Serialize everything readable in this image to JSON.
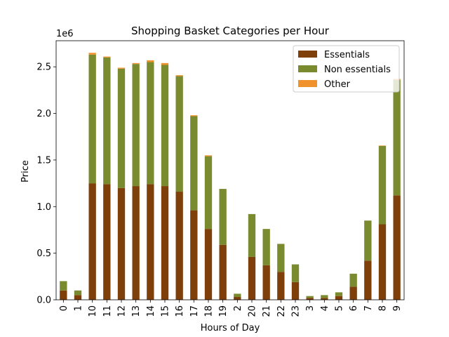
{
  "chart_data": {
    "type": "bar",
    "stacked": true,
    "title": "Shopping Basket Categories per Hour",
    "xlabel": "Hours of Day",
    "ylabel": "Price",
    "y_multiplier_label": "1e6",
    "ylim": [
      0,
      2.78
    ],
    "yticks": [
      0.0,
      0.5,
      1.0,
      1.5,
      2.0,
      2.5
    ],
    "ytick_labels": [
      "0.0",
      "0.5",
      "1.0",
      "1.5",
      "2.0",
      "2.5"
    ],
    "categories": [
      "0",
      "1",
      "10",
      "11",
      "12",
      "13",
      "14",
      "15",
      "16",
      "17",
      "18",
      "19",
      "2",
      "20",
      "21",
      "22",
      "23",
      "3",
      "4",
      "5",
      "6",
      "7",
      "8",
      "9"
    ],
    "series": [
      {
        "name": "Essentials",
        "color": "#7f3f0b",
        "values": [
          0.1,
          0.05,
          1.25,
          1.24,
          1.2,
          1.22,
          1.24,
          1.22,
          1.16,
          0.96,
          0.76,
          0.59,
          0.03,
          0.46,
          0.37,
          0.3,
          0.19,
          0.02,
          0.02,
          0.04,
          0.14,
          0.42,
          0.81,
          1.12
        ]
      },
      {
        "name": "Non essentials",
        "color": "#7a8a2f",
        "values": [
          0.1,
          0.05,
          1.38,
          1.36,
          1.28,
          1.31,
          1.31,
          1.3,
          1.24,
          1.01,
          0.78,
          0.6,
          0.035,
          0.46,
          0.39,
          0.3,
          0.19,
          0.02,
          0.03,
          0.04,
          0.14,
          0.43,
          0.84,
          1.24
        ]
      },
      {
        "name": "Other",
        "color": "#f0922b",
        "values": [
          0.0,
          0.0,
          0.02,
          0.01,
          0.01,
          0.01,
          0.02,
          0.02,
          0.01,
          0.01,
          0.01,
          0.0,
          0.0,
          0.0,
          0.0,
          0.0,
          0.0,
          0.0,
          0.0,
          0.0,
          0.0,
          0.0,
          0.005,
          0.01
        ]
      }
    ],
    "legend_position": "top-right"
  }
}
